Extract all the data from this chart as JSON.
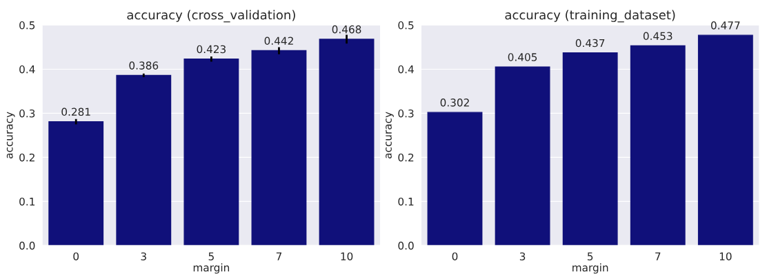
{
  "chart_data": [
    {
      "type": "bar",
      "title": "accuracy (cross_validation)",
      "xlabel": "margin",
      "ylabel": "accuracy",
      "categories": [
        "0",
        "3",
        "5",
        "7",
        "10"
      ],
      "values": [
        0.281,
        0.386,
        0.423,
        0.442,
        0.468
      ],
      "errors": [
        0.006,
        0.004,
        0.006,
        0.008,
        0.01
      ],
      "color": "#10107a",
      "ylim": [
        0,
        0.5
      ],
      "yticks": [
        {
          "value": 0,
          "label": "0.0"
        },
        0.1,
        0.2,
        0.3,
        0.4,
        0.5
      ],
      "grid": "y",
      "data_labels": true
    },
    {
      "type": "bar",
      "title": "accuracy (training_dataset)",
      "xlabel": "margin",
      "ylabel": "accuracy",
      "categories": [
        "0",
        "3",
        "5",
        "7",
        "10"
      ],
      "values": [
        0.302,
        0.405,
        0.437,
        0.453,
        0.477
      ],
      "color": "#10107a",
      "ylim": [
        0,
        0.5
      ],
      "yticks": [
        {
          "value": 0,
          "label": "0.0"
        },
        0.1,
        0.2,
        0.3,
        0.4,
        0.5
      ],
      "grid": "y",
      "data_labels": true
    }
  ]
}
